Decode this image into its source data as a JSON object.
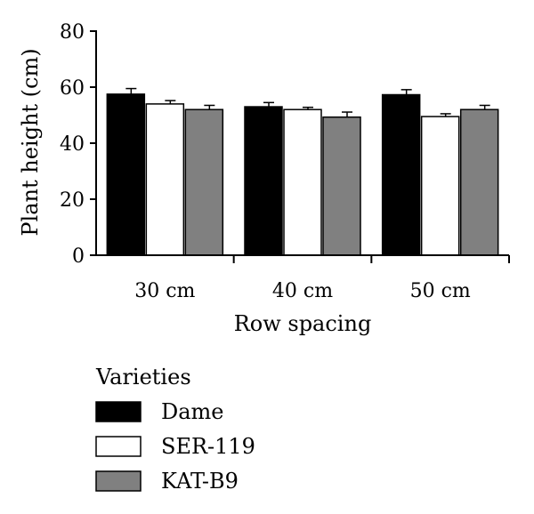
{
  "chart_data": {
    "type": "bar",
    "xlabel": "Row spacing",
    "ylabel": "Plant height (cm)",
    "ylim": [
      0,
      80
    ],
    "yticks": [
      0,
      20,
      40,
      60,
      80
    ],
    "categories": [
      "30 cm",
      "40 cm",
      "50 cm"
    ],
    "series": [
      {
        "name": "Dame",
        "values": [
          57.5,
          53.0,
          57.3
        ],
        "errors": [
          2.0,
          1.5,
          1.8
        ],
        "color": "#000000"
      },
      {
        "name": "SER-119",
        "values": [
          54.0,
          52.0,
          49.5
        ],
        "errors": [
          1.2,
          0.8,
          1.0
        ],
        "color": "#ffffff"
      },
      {
        "name": "KAT-B9",
        "values": [
          52.0,
          49.3,
          52.0
        ],
        "errors": [
          1.5,
          1.8,
          1.5
        ],
        "color": "#808080"
      }
    ],
    "legend": {
      "title": "Varieties",
      "position": "bottom-left"
    },
    "grid": false
  }
}
